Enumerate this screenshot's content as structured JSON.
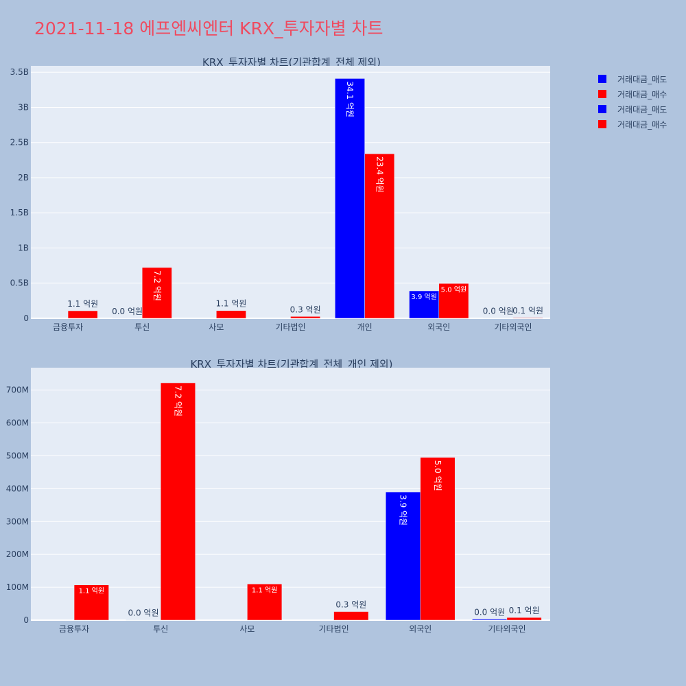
{
  "title": "2021-11-18 에프엔씨엔터 KRX_투자자별 차트",
  "legend": [
    {
      "label": "거래대금_매도",
      "color": "#0000ff"
    },
    {
      "label": "거래대금_매수",
      "color": "#ff0000"
    },
    {
      "label": "거래대금_매도",
      "color": "#0000ff"
    },
    {
      "label": "거래대금_매수",
      "color": "#ff0000"
    }
  ],
  "chart_data": [
    {
      "type": "bar",
      "title": "KRX_투자자별 차트(기관합계_전체 제외)",
      "categories": [
        "금융투자",
        "투신",
        "사모",
        "기타법인",
        "개인",
        "외국인",
        "기타외국인"
      ],
      "series": [
        {
          "name": "거래대금_매도",
          "color": "#0000ff",
          "values": [
            0,
            1000000,
            0,
            0,
            3410000000,
            390000000,
            3000000
          ],
          "labels": [
            "",
            "0.0 억원",
            "",
            "",
            "34.1 억원",
            "3.9 억원",
            "0.0 억원"
          ]
        },
        {
          "name": "거래대금_매수",
          "color": "#ff0000",
          "values": [
            107000000,
            722000000,
            110000000,
            26000000,
            2340000000,
            495000000,
            8000000
          ],
          "labels": [
            "1.1 억원",
            "7.2 억원",
            "1.1 억원",
            "0.3 억원",
            "23.4 억원",
            "5.0 억원",
            "0.1 억원"
          ]
        }
      ],
      "yticks": [
        0,
        500000000,
        1000000000,
        1500000000,
        2000000000,
        2500000000,
        3000000000,
        3500000000
      ],
      "yticklabels": [
        "0",
        "0.5B",
        "1B",
        "1.5B",
        "2B",
        "2.5B",
        "3B",
        "3.5B"
      ],
      "ylim": [
        0,
        3590000000
      ]
    },
    {
      "type": "bar",
      "title": "KRX_투자자별 차트(기관합계_전체_개인 제외)",
      "categories": [
        "금융투자",
        "투신",
        "사모",
        "기타법인",
        "외국인",
        "기타외국인"
      ],
      "series": [
        {
          "name": "거래대금_매도",
          "color": "#0000ff",
          "values": [
            0,
            1000000,
            0,
            0,
            390000000,
            3000000
          ],
          "labels": [
            "",
            "0.0 억원",
            "",
            "",
            "3.9 억원",
            "0.0 억원"
          ]
        },
        {
          "name": "거래대금_매수",
          "color": "#ff0000",
          "values": [
            107000000,
            722000000,
            110000000,
            26000000,
            495000000,
            8000000
          ],
          "labels": [
            "1.1 억원",
            "7.2 억원",
            "1.1 억원",
            "0.3 억원",
            "5.0 억원",
            "0.1 억원"
          ]
        }
      ],
      "yticks": [
        0,
        100000000,
        200000000,
        300000000,
        400000000,
        500000000,
        600000000,
        700000000
      ],
      "yticklabels": [
        "0",
        "100M",
        "200M",
        "300M",
        "400M",
        "500M",
        "600M",
        "700M"
      ],
      "ylim": [
        0,
        768000000
      ]
    }
  ]
}
